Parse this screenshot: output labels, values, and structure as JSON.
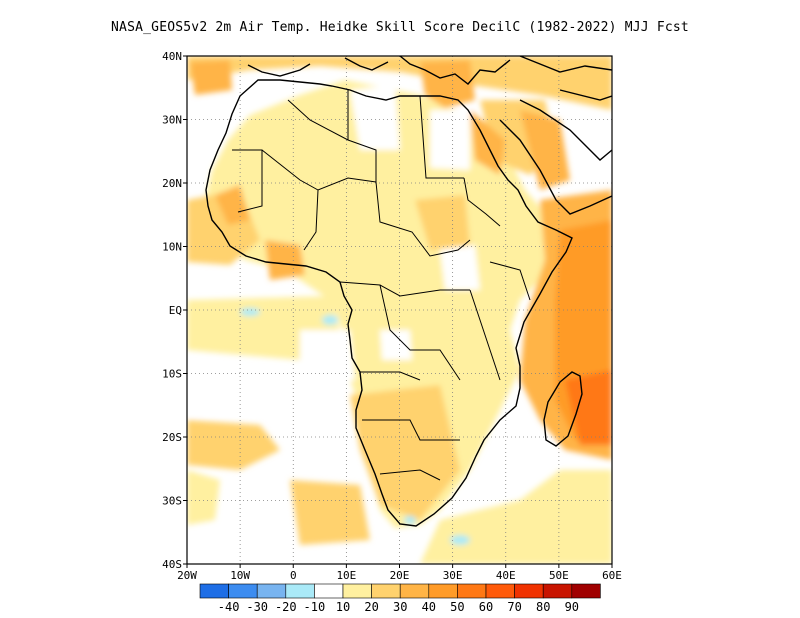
{
  "title": "NASA_GEOS5v2  2m Air Temp. Heidke Skill Score DecilC (1982-2022) MJJ Fcst",
  "map": {
    "lon_range": [
      -20,
      60
    ],
    "lat_range": [
      -40,
      40
    ],
    "lat_ticks": [
      {
        "value": 40,
        "label": "40N"
      },
      {
        "value": 30,
        "label": "30N"
      },
      {
        "value": 20,
        "label": "20N"
      },
      {
        "value": 10,
        "label": "10N"
      },
      {
        "value": 0,
        "label": "EQ"
      },
      {
        "value": -10,
        "label": "10S"
      },
      {
        "value": -20,
        "label": "20S"
      },
      {
        "value": -30,
        "label": "30S"
      },
      {
        "value": -40,
        "label": "40S"
      }
    ],
    "lon_ticks": [
      {
        "value": -20,
        "label": "20W"
      },
      {
        "value": -10,
        "label": "10W"
      },
      {
        "value": 0,
        "label": "0"
      },
      {
        "value": 10,
        "label": "10E"
      },
      {
        "value": 20,
        "label": "20E"
      },
      {
        "value": 30,
        "label": "30E"
      },
      {
        "value": 40,
        "label": "40E"
      },
      {
        "value": 50,
        "label": "50E"
      },
      {
        "value": 60,
        "label": "60E"
      }
    ]
  },
  "colorbar": {
    "colors": [
      "#1e6ee6",
      "#3c8cf0",
      "#78b4f0",
      "#aaeaf8",
      "#ffffff",
      "#fff0a0",
      "#ffd26e",
      "#ffb446",
      "#ff9b28",
      "#ff7814",
      "#ff5a0a",
      "#f03200",
      "#c81400",
      "#a00000"
    ],
    "labels": [
      "-40",
      "-30",
      "-20",
      "-10",
      "10",
      "20",
      "30",
      "40",
      "50",
      "60",
      "70",
      "80",
      "90"
    ]
  }
}
